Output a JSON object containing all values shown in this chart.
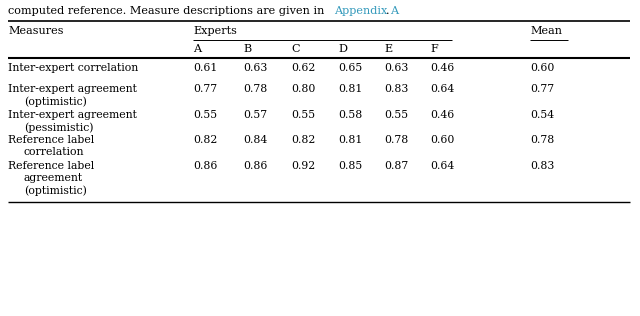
{
  "prefix_text": "computed reference. Measure descriptions are given in ",
  "link_text": "Appendix A",
  "suffix_text": ".",
  "col_header1": "Measures",
  "col_header2": "Experts",
  "col_header3": "Mean",
  "sub_headers": [
    "A",
    "B",
    "C",
    "D",
    "E",
    "F"
  ],
  "rows": [
    {
      "label_lines": [
        "Inter-expert correlation"
      ],
      "values": [
        "0.61",
        "0.63",
        "0.62",
        "0.65",
        "0.63",
        "0.46",
        "0.60"
      ]
    },
    {
      "label_lines": [
        "Inter-expert agreement",
        "(optimistic)"
      ],
      "values": [
        "0.77",
        "0.78",
        "0.80",
        "0.81",
        "0.83",
        "0.64",
        "0.77"
      ]
    },
    {
      "label_lines": [
        "Inter-expert agreement",
        "(pessimistic)"
      ],
      "values": [
        "0.55",
        "0.57",
        "0.55",
        "0.58",
        "0.55",
        "0.46",
        "0.54"
      ]
    },
    {
      "label_lines": [
        "Reference label",
        "correlation"
      ],
      "values": [
        "0.82",
        "0.84",
        "0.82",
        "0.81",
        "0.78",
        "0.60",
        "0.78"
      ]
    },
    {
      "label_lines": [
        "Reference label",
        "agreement",
        "(optimistic)"
      ],
      "values": [
        "0.86",
        "0.86",
        "0.92",
        "0.85",
        "0.87",
        "0.64",
        "0.83"
      ]
    }
  ],
  "link_color": "#3399bb",
  "text_color": "#000000",
  "bg_color": "#ffffff",
  "font_size": 7.8,
  "font_family": "DejaVu Serif"
}
